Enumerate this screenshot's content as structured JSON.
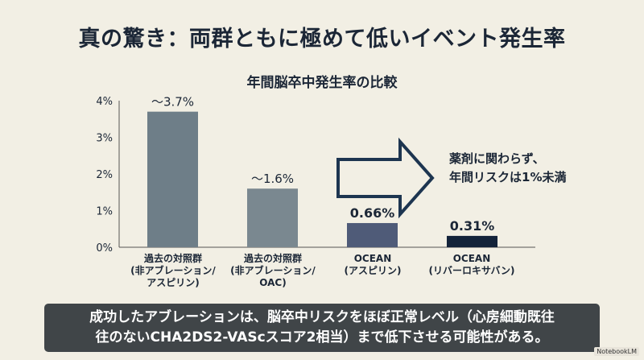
{
  "slide": {
    "title": "真の驚き：両群ともに極めて低いイベント発生率",
    "callout_lines": [
      "薬剤に関わらず、",
      "年間リスクは1%未満"
    ],
    "caption_lines": [
      "成功したアブレーションは、脳卒中リスクをほぼ正常レベル（心房細動既往",
      "往のないCHA2DS2-VAScスコア2相当）まで低下させる可能性がある。"
    ],
    "brand": "NotebookLM"
  },
  "chart_data": {
    "type": "bar",
    "title": "年間脳卒中発生率の比較",
    "categories": [
      "過去の対照群\n(非アブレーション/\nアスピリン)",
      "過去の対照群\n(非アブレーション/\nOAC)",
      "OCEAN\n(アスピリン)",
      "OCEAN\n(リバーロキサバン)"
    ],
    "values": [
      3.7,
      1.6,
      0.66,
      0.31
    ],
    "value_labels": [
      "～3.7%",
      "～1.6%",
      "0.66%",
      "0.31%"
    ],
    "colors": [
      "#6e7e88",
      "#7a8890",
      "#4f5b78",
      "#13233a"
    ],
    "ylim": [
      0,
      4
    ],
    "yticks": [
      "0%",
      "1%",
      "2%",
      "3%",
      "4%"
    ],
    "xlabel": "",
    "ylabel": "",
    "grid": false,
    "legend": "none"
  }
}
